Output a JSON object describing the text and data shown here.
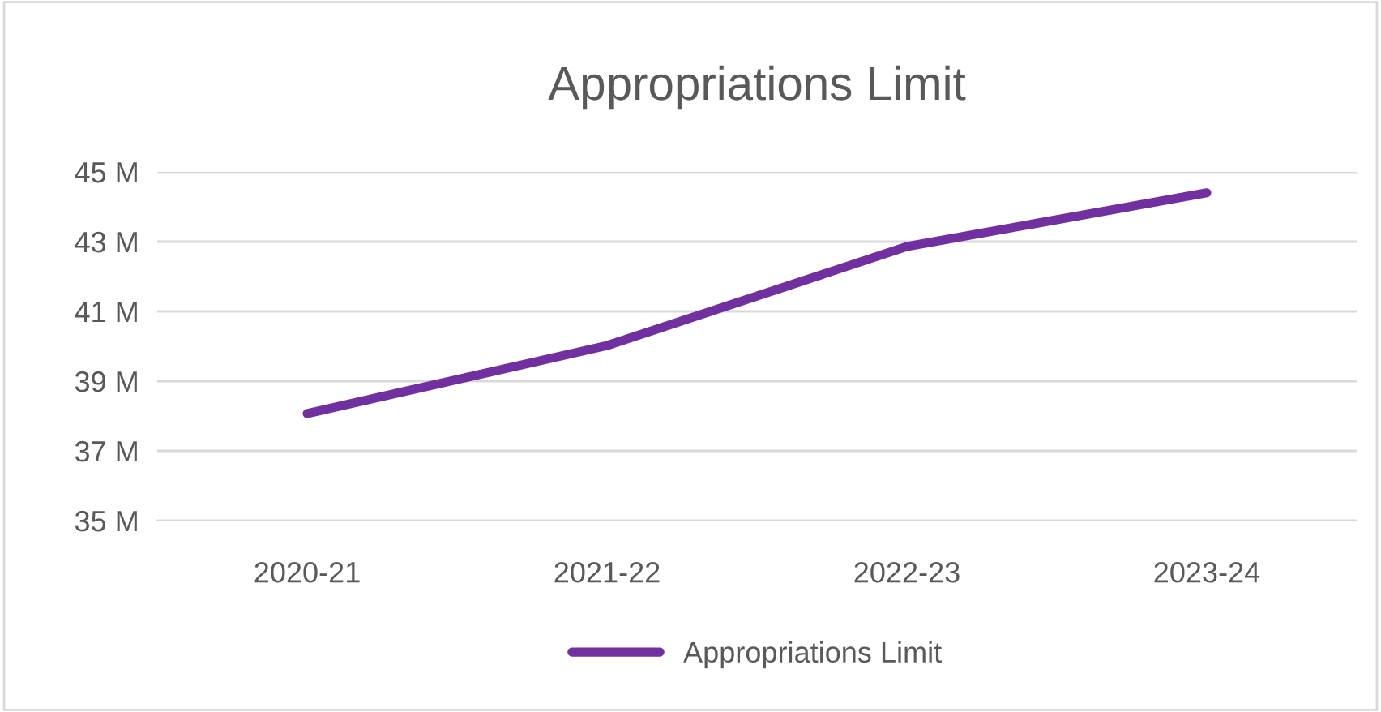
{
  "chart_data": {
    "type": "line",
    "title": "Appropriations Limit",
    "categories": [
      "2020-21",
      "2021-22",
      "2022-23",
      "2023-24"
    ],
    "series": [
      {
        "name": "Appropriations Limit",
        "color": "#7030a0",
        "values": [
          38.07,
          40.02,
          42.86,
          44.4
        ]
      }
    ],
    "ylim": [
      35,
      45
    ],
    "yticks": [
      {
        "value": 35,
        "label": "35 M"
      },
      {
        "value": 37,
        "label": "37 M"
      },
      {
        "value": 39,
        "label": "39 M"
      },
      {
        "value": 41,
        "label": "41 M"
      },
      {
        "value": 43,
        "label": "43 M"
      },
      {
        "value": 45,
        "label": "45 M"
      }
    ],
    "grid": "y",
    "legend": "bottom",
    "marker": "none",
    "line_style": "solid"
  }
}
